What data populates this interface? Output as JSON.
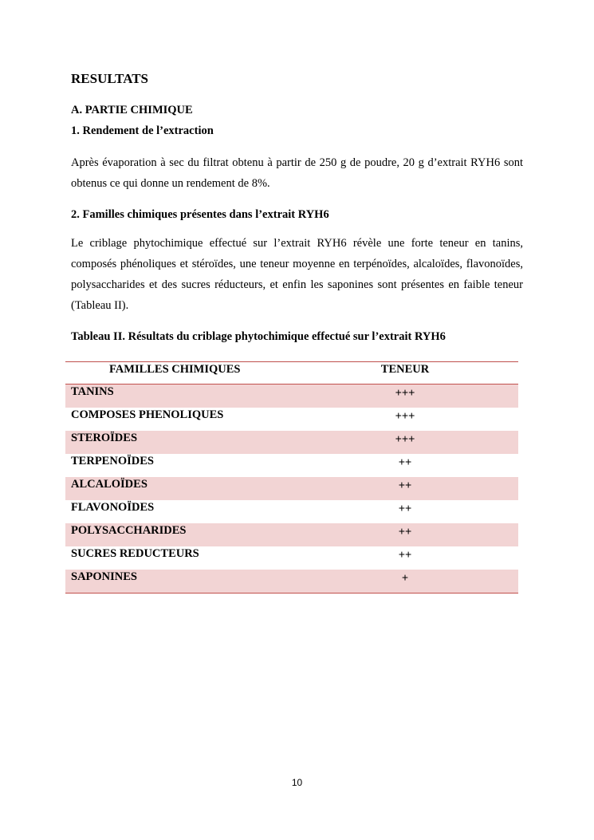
{
  "title": "RESULTATS",
  "section_a": "A.   PARTIE CHIMIQUE",
  "sub1": "1.  Rendement de l’extraction",
  "para1": "Après évaporation à sec du filtrat obtenu à partir de 250 g de poudre, 20 g d’extrait RYH6 sont obtenus ce qui donne un rendement de 8%.",
  "sub2": "2.  Familles chimiques présentes dans l’extrait RYH6",
  "para2": "Le criblage phytochimique effectué sur l’extrait RYH6 révèle une forte teneur en tanins, composés phénoliques et stéroïdes, une teneur moyenne en terpénoïdes, alcaloïdes, flavonoïdes, polysaccharides et des sucres réducteurs, et enfin les saponines sont présentes en faible teneur (Tableau II).",
  "table_caption": "Tableau II. Résultats du criblage phytochimique effectué sur l’extrait RYH6",
  "table": {
    "headers": [
      "FAMILLES CHIMIQUES",
      "TENEUR"
    ],
    "rows": [
      {
        "famille": "TANINS",
        "teneur": "+++"
      },
      {
        "famille": "COMPOSES PHENOLIQUES",
        "teneur": "+++"
      },
      {
        "famille": "STEROÏDES",
        "teneur": "+++"
      },
      {
        "famille": "TERPENOÏDES",
        "teneur": "++"
      },
      {
        "famille": "ALCALOÏDES",
        "teneur": "++"
      },
      {
        "famille": "FLAVONOÏDES",
        "teneur": "++"
      },
      {
        "famille": "POLYSACCHARIDES",
        "teneur": "++"
      },
      {
        "famille": "SUCRES REDUCTEURS",
        "teneur": "++"
      },
      {
        "famille": "SAPONINES",
        "teneur": "+"
      }
    ],
    "colors": {
      "stripe": "#f2d4d4",
      "border": "#c0504d"
    }
  },
  "page_number": "10"
}
